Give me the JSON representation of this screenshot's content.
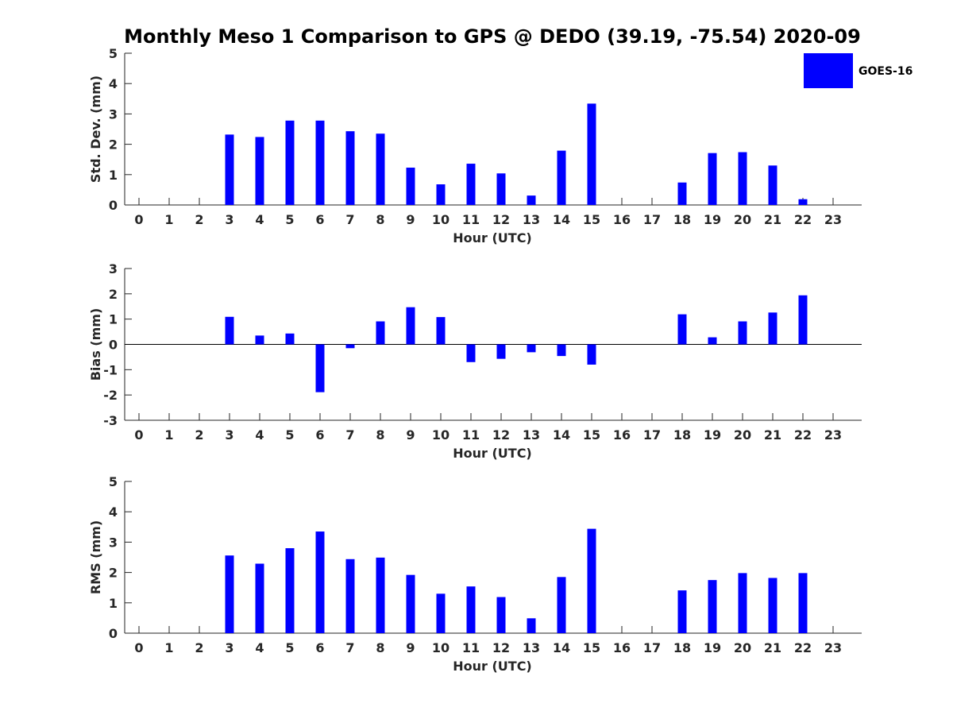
{
  "figure": {
    "title": "Monthly Meso 1 Comparison to GPS @ DEDO (39.19, -75.54) 2020-09",
    "legend": {
      "label": "GOES-16",
      "placement": "top-right",
      "color": "#0000ff"
    }
  },
  "chart_data": [
    {
      "type": "bar",
      "ylabel": "Std. Dev. (mm)",
      "xlabel": "Hour (UTC)",
      "ylim": [
        0,
        5
      ],
      "yticks": [
        0,
        1,
        2,
        3,
        4,
        5
      ],
      "categories": [
        0,
        1,
        2,
        3,
        4,
        5,
        6,
        7,
        8,
        9,
        10,
        11,
        12,
        13,
        14,
        15,
        16,
        17,
        18,
        19,
        20,
        21,
        22,
        23
      ],
      "series": [
        {
          "name": "GOES-16",
          "color": "#0000ff",
          "values": [
            null,
            null,
            null,
            2.32,
            2.24,
            2.78,
            2.78,
            2.43,
            2.35,
            1.23,
            0.68,
            1.36,
            1.04,
            0.31,
            1.79,
            3.34,
            null,
            null,
            0.74,
            1.71,
            1.74,
            1.3,
            0.19,
            null
          ]
        }
      ]
    },
    {
      "type": "bar",
      "ylabel": "Bias (mm)",
      "xlabel": "Hour (UTC)",
      "ylim": [
        -3,
        3
      ],
      "yticks": [
        -3,
        -2,
        -1,
        0,
        1,
        2,
        3
      ],
      "zero_line": true,
      "categories": [
        0,
        1,
        2,
        3,
        4,
        5,
        6,
        7,
        8,
        9,
        10,
        11,
        12,
        13,
        14,
        15,
        16,
        17,
        18,
        19,
        20,
        21,
        22,
        23
      ],
      "series": [
        {
          "name": "GOES-16",
          "color": "#0000ff",
          "values": [
            null,
            null,
            null,
            1.09,
            0.35,
            0.43,
            -1.89,
            -0.15,
            0.91,
            1.47,
            1.08,
            -0.7,
            -0.57,
            -0.31,
            -0.46,
            -0.8,
            null,
            null,
            1.19,
            0.28,
            0.91,
            1.26,
            1.94,
            null
          ]
        }
      ]
    },
    {
      "type": "bar",
      "ylabel": "RMS (mm)",
      "xlabel": "Hour (UTC)",
      "ylim": [
        0,
        5
      ],
      "yticks": [
        0,
        1,
        2,
        3,
        4,
        5
      ],
      "categories": [
        0,
        1,
        2,
        3,
        4,
        5,
        6,
        7,
        8,
        9,
        10,
        11,
        12,
        13,
        14,
        15,
        16,
        17,
        18,
        19,
        20,
        21,
        22,
        23
      ],
      "series": [
        {
          "name": "GOES-16",
          "color": "#0000ff",
          "values": [
            null,
            null,
            null,
            2.56,
            2.29,
            2.8,
            3.35,
            2.44,
            2.49,
            1.92,
            1.3,
            1.54,
            1.19,
            0.49,
            1.85,
            3.44,
            null,
            null,
            1.41,
            1.75,
            1.98,
            1.82,
            1.98,
            null
          ]
        }
      ]
    }
  ]
}
